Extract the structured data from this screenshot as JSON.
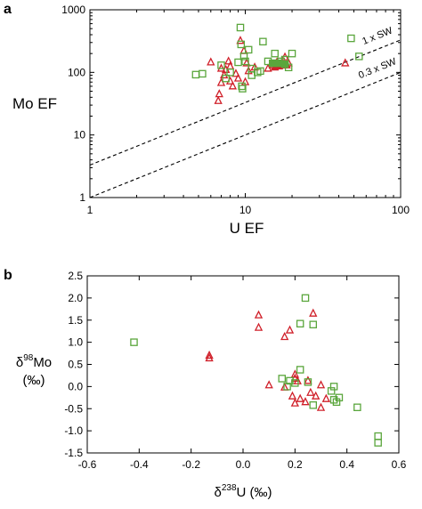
{
  "colors": {
    "red": "#d0202a",
    "green": "#5aa63c",
    "axis": "#000000"
  },
  "chart_data": [
    {
      "type": "scatter",
      "panel_label": "a",
      "xlabel": "U EF",
      "ylabel": "Mo EF",
      "xscale": "log",
      "yscale": "log",
      "xlim": [
        1,
        100
      ],
      "ylim": [
        1,
        1000
      ],
      "x_ticks": [
        "1",
        "10",
        "100"
      ],
      "y_ticks": [
        "1",
        "10",
        "100",
        "1000"
      ],
      "reference_lines": [
        {
          "label": "1 x SW",
          "ratio": 3.3
        },
        {
          "label": "0.3 x SW",
          "ratio": 1.0
        }
      ],
      "series": [
        {
          "marker": "open-triangle",
          "color": "#d0202a",
          "points": [
            [
              6.0,
              145
            ],
            [
              7.0,
              115
            ],
            [
              7.3,
              90
            ],
            [
              7.0,
              68
            ],
            [
              6.8,
              45
            ],
            [
              6.7,
              35
            ],
            [
              7.5,
              110
            ],
            [
              7.8,
              150
            ],
            [
              8.0,
              125
            ],
            [
              8.0,
              72
            ],
            [
              8.3,
              60
            ],
            [
              8.7,
              95
            ],
            [
              9.0,
              80
            ],
            [
              9.3,
              320
            ],
            [
              9.8,
              220
            ],
            [
              10.2,
              140
            ],
            [
              10.5,
              105
            ],
            [
              10.0,
              70
            ],
            [
              11.5,
              120
            ],
            [
              14.0,
              115
            ],
            [
              15.0,
              130
            ],
            [
              16.0,
              145
            ],
            [
              18.0,
              175
            ],
            [
              19.0,
              140
            ],
            [
              44.0,
              140
            ]
          ]
        },
        {
          "marker": "filled-triangle",
          "color": "#d0202a",
          "points": [
            [
              15.5,
              120
            ],
            [
              16.5,
              125
            ],
            [
              17.5,
              130
            ],
            [
              18.5,
              130
            ]
          ]
        },
        {
          "marker": "open-square",
          "color": "#5aa63c",
          "points": [
            [
              4.8,
              92
            ],
            [
              5.3,
              95
            ],
            [
              7.0,
              130
            ],
            [
              7.5,
              80
            ],
            [
              8.0,
              100
            ],
            [
              9.0,
              145
            ],
            [
              9.3,
              520
            ],
            [
              9.4,
              280
            ],
            [
              9.5,
              60
            ],
            [
              9.6,
              55
            ],
            [
              9.8,
              180
            ],
            [
              10.0,
              150
            ],
            [
              10.5,
              230
            ],
            [
              11.0,
              90
            ],
            [
              11.0,
              115
            ],
            [
              12.0,
              100
            ],
            [
              12.5,
              105
            ],
            [
              13.0,
              310
            ],
            [
              14.0,
              150
            ],
            [
              15.5,
              200
            ],
            [
              17.0,
              150
            ],
            [
              18.0,
              160
            ],
            [
              19.0,
              120
            ],
            [
              20.0,
              200
            ],
            [
              48.0,
              350
            ],
            [
              54.0,
              180
            ]
          ]
        },
        {
          "marker": "filled-square",
          "color": "#5aa63c",
          "points": [
            [
              15.0,
              140
            ],
            [
              16.5,
              140
            ],
            [
              18.0,
              135
            ]
          ]
        }
      ]
    },
    {
      "type": "scatter",
      "panel_label": "b",
      "xlabel_main": "δ",
      "xlabel_sup": "238",
      "xlabel_rest": "U (‰)",
      "ylabel_main": "δ",
      "ylabel_sup": "98",
      "ylabel_rest": "Mo",
      "ylabel_unit": "(‰)",
      "xlim": [
        -0.6,
        0.6
      ],
      "ylim": [
        -1.5,
        2.5
      ],
      "x_ticks": [
        "-0.6",
        "-0.4",
        "-0.2",
        "0.0",
        "0.2",
        "0.4",
        "0.6"
      ],
      "y_ticks": [
        "-1.5",
        "-1.0",
        "-0.5",
        "0.0",
        "0.5",
        "1.0",
        "1.5",
        "2.0",
        "2.5"
      ],
      "series": [
        {
          "marker": "open-triangle",
          "color": "#d0202a",
          "points": [
            [
              -0.13,
              0.7
            ],
            [
              -0.13,
              0.64
            ],
            [
              0.06,
              1.61
            ],
            [
              0.06,
              1.33
            ],
            [
              0.1,
              0.03
            ],
            [
              0.16,
              1.12
            ],
            [
              0.18,
              1.27
            ],
            [
              0.16,
              -0.02
            ],
            [
              0.19,
              -0.22
            ],
            [
              0.2,
              0.27
            ],
            [
              0.2,
              0.18
            ],
            [
              0.2,
              -0.38
            ],
            [
              0.21,
              0.12
            ],
            [
              0.22,
              -0.28
            ],
            [
              0.24,
              -0.35
            ],
            [
              0.25,
              0.13
            ],
            [
              0.26,
              -0.14
            ],
            [
              0.27,
              1.65
            ],
            [
              0.28,
              -0.22
            ],
            [
              0.3,
              -0.48
            ],
            [
              0.3,
              0.03
            ],
            [
              0.32,
              -0.28
            ]
          ]
        },
        {
          "marker": "open-square",
          "color": "#5aa63c",
          "points": [
            [
              -0.42,
              1.0
            ],
            [
              0.15,
              0.18
            ],
            [
              0.17,
              0.0
            ],
            [
              0.18,
              0.13
            ],
            [
              0.2,
              0.08
            ],
            [
              0.22,
              1.42
            ],
            [
              0.22,
              0.38
            ],
            [
              0.24,
              2.0
            ],
            [
              0.25,
              0.1
            ],
            [
              0.27,
              1.4
            ],
            [
              0.27,
              -0.42
            ],
            [
              0.34,
              -0.1
            ],
            [
              0.35,
              0.0
            ],
            [
              0.35,
              -0.3
            ],
            [
              0.36,
              -0.35
            ],
            [
              0.37,
              -0.25
            ],
            [
              0.44,
              -0.47
            ],
            [
              0.52,
              -1.12
            ],
            [
              0.52,
              -1.27
            ]
          ]
        }
      ]
    }
  ]
}
